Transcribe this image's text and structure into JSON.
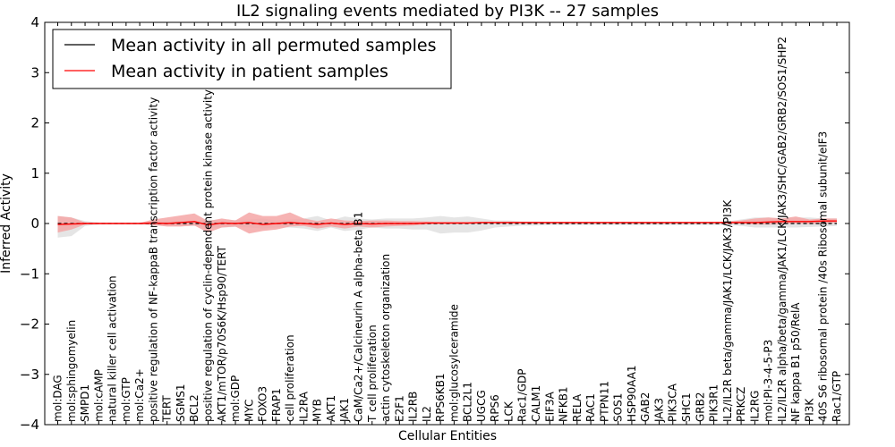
{
  "chart_data": {
    "type": "line",
    "title": "IL2 signaling events mediated by PI3K -- 27 samples",
    "xlabel": "Cellular Entities",
    "ylabel": "Inferred Activity",
    "ylim": [
      -4,
      4
    ],
    "yticks": [
      "−4",
      "−3",
      "−2",
      "−1",
      "0",
      "1",
      "2",
      "3",
      "4"
    ],
    "yticks_values": [
      -4,
      -3,
      -2,
      -1,
      0,
      1,
      2,
      3,
      4
    ],
    "grid": false,
    "legend_position": "top-left",
    "categories": [
      "mol:DAG",
      "mol:sphingomyelin",
      "SMPD1",
      "mol:cAMP",
      "natural killer cell activation",
      "mol:GTP",
      "mol:Ca2+",
      "positive regulation of NF-kappaB transcription factor activity",
      "TERT",
      "SGMS1",
      "BCL2",
      "positive regulation of cyclin-dependent protein kinase activity",
      "AKT1/mTOR/p70S6K/Hsp90/TERT",
      "mol:GDP",
      "MYC",
      "FOXO3",
      "FRAP1",
      "cell proliferation",
      "IL2RA",
      "MYB",
      "AKT1",
      "JAK1",
      "CaM/Ca2+/Calcineurin A alpha-beta B1",
      "T cell proliferation",
      "actin cytoskeleton organization",
      "E2F1",
      "IL2RB",
      "IL2",
      "RPS6KB1",
      "mol:glucosylceramide",
      "BCL2L1",
      "UGCG",
      "RPS6",
      "LCK",
      "Rac1/GDP",
      "CALM1",
      "EIF3A",
      "NFKB1",
      "RELA",
      "RAC1",
      "PTPN11",
      "SOS1",
      "HSP90AA1",
      "GAB2",
      "JAK3",
      "PIK3CA",
      "SHC1",
      "GRB2",
      "PIK3R1",
      "IL2/IL2R beta/gamma/JAK1/LCK/JAK3/PI3K",
      "PRKCZ",
      "IL2RG",
      "mol:PI-3-4-5-P3",
      "IL2/IL2R alpha/beta/gamma/JAK1/LCK/JAK3/SHC/GAB2/GRB2/SOS1/SHP2",
      "NF kappa B1 p50/RelA",
      "PI3K",
      "40S S6 ribosomal protein /40s Ribosomal subunit/eIF3",
      "Rac1/GTP"
    ],
    "series": [
      {
        "name": "Mean activity in all permuted samples",
        "color": "#000000",
        "values": [
          0,
          0,
          0,
          0,
          0,
          0,
          0,
          0,
          0,
          0,
          0,
          0,
          0,
          0,
          0,
          0,
          0,
          0,
          0,
          0,
          0,
          0,
          0,
          0,
          0,
          0,
          0,
          0,
          0,
          0,
          0,
          0,
          0,
          0,
          0,
          0,
          0,
          0,
          0,
          0,
          0,
          0,
          0,
          0,
          0,
          0,
          0,
          0,
          0,
          0,
          0,
          0,
          0,
          0,
          0,
          0,
          0,
          0
        ],
        "lower": [
          -0.28,
          -0.25,
          -0.05,
          -0.02,
          -0.02,
          -0.02,
          -0.02,
          -0.03,
          -0.05,
          -0.05,
          -0.05,
          -0.08,
          -0.08,
          -0.07,
          -0.08,
          -0.1,
          -0.08,
          -0.08,
          -0.1,
          -0.15,
          -0.08,
          -0.15,
          -0.12,
          -0.08,
          -0.1,
          -0.1,
          -0.12,
          -0.12,
          -0.2,
          -0.18,
          -0.18,
          -0.14,
          -0.08,
          -0.06,
          -0.04,
          -0.04,
          -0.03,
          -0.03,
          -0.03,
          -0.03,
          -0.03,
          -0.03,
          -0.03,
          -0.03,
          -0.03,
          -0.03,
          -0.03,
          -0.03,
          -0.03,
          -0.03,
          -0.05,
          -0.08,
          -0.08,
          -0.08,
          -0.08,
          -0.07,
          -0.06,
          -0.05
        ],
        "upper": [
          0.15,
          0.12,
          0.05,
          0.02,
          0.02,
          0.02,
          0.02,
          0.04,
          0.05,
          0.05,
          0.05,
          0.08,
          0.06,
          0.07,
          0.08,
          0.1,
          0.06,
          0.08,
          0.1,
          0.15,
          0.06,
          0.14,
          0.1,
          0.08,
          0.1,
          0.1,
          0.1,
          0.12,
          0.15,
          0.12,
          0.14,
          0.1,
          0.06,
          0.06,
          0.04,
          0.04,
          0.03,
          0.03,
          0.03,
          0.03,
          0.03,
          0.03,
          0.03,
          0.03,
          0.03,
          0.03,
          0.03,
          0.03,
          0.03,
          0.04,
          0.08,
          0.12,
          0.12,
          0.1,
          0.12,
          0.12,
          0.1,
          0.1
        ]
      },
      {
        "name": "Mean activity in patient samples",
        "color": "#ff0000",
        "fill": "#f4a6a6",
        "values": [
          -0.02,
          -0.01,
          0,
          0,
          0,
          0,
          0,
          0.01,
          0,
          0.02,
          0.04,
          -0.03,
          0.01,
          0,
          0.02,
          -0.02,
          0,
          0.02,
          0,
          -0.02,
          0.01,
          -0.02,
          0,
          -0.01,
          0,
          0,
          0,
          0.01,
          0.01,
          0.01,
          0.01,
          0.02,
          0.02,
          0.02,
          0.02,
          0.02,
          0.02,
          0.02,
          0.02,
          0.02,
          0.02,
          0.02,
          0.02,
          0.02,
          0.02,
          0.02,
          0.02,
          0.02,
          0.02,
          0.02,
          0.02,
          0.02,
          0.03,
          0.04,
          0.04,
          0.04,
          0.05,
          0.05
        ],
        "lower": [
          -0.18,
          -0.12,
          -0.02,
          -0.01,
          -0.01,
          -0.01,
          -0.01,
          -0.03,
          -0.06,
          -0.06,
          -0.04,
          -0.18,
          -0.08,
          -0.06,
          -0.2,
          -0.15,
          -0.12,
          -0.06,
          -0.05,
          -0.1,
          -0.06,
          -0.1,
          -0.06,
          -0.08,
          -0.06,
          -0.05,
          -0.04,
          -0.02,
          -0.01,
          -0.01,
          -0.01,
          0,
          0,
          0,
          0,
          0,
          0,
          0,
          0,
          0,
          0,
          0,
          0,
          0,
          0,
          0,
          0,
          0,
          0,
          0,
          0,
          -0.02,
          -0.02,
          -0.01,
          0,
          -0.01,
          0,
          0.01
        ],
        "upper": [
          0.15,
          0.12,
          0.02,
          0.01,
          0.01,
          0.01,
          0.01,
          0.08,
          0.12,
          0.16,
          0.2,
          0.05,
          0.1,
          0.06,
          0.22,
          0.15,
          0.15,
          0.22,
          0.1,
          0.05,
          0.1,
          0.06,
          0.05,
          0.06,
          0.06,
          0.05,
          0.05,
          0.04,
          0.03,
          0.03,
          0.03,
          0.03,
          0.03,
          0.03,
          0.03,
          0.03,
          0.03,
          0.03,
          0.03,
          0.03,
          0.03,
          0.03,
          0.03,
          0.03,
          0.03,
          0.03,
          0.03,
          0.03,
          0.03,
          0.04,
          0.06,
          0.1,
          0.12,
          0.1,
          0.14,
          0.08,
          0.1,
          0.1
        ]
      }
    ]
  }
}
